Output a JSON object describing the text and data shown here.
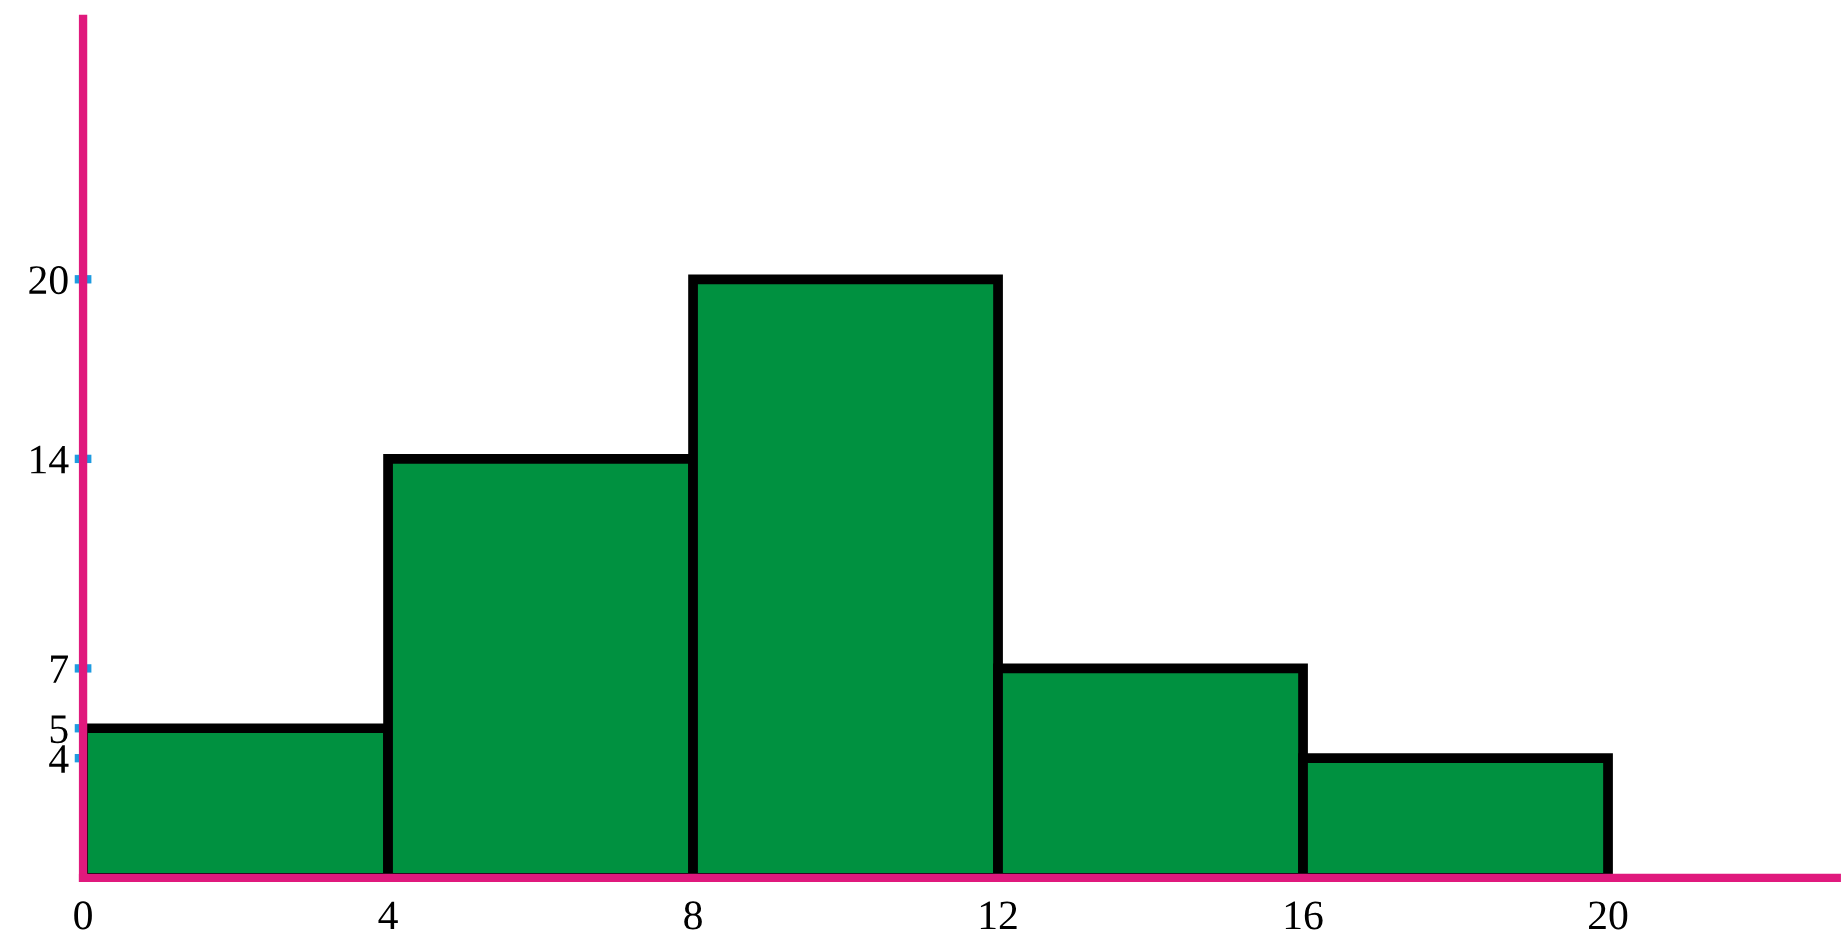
{
  "chart_data": {
    "type": "histogram",
    "bins": [
      0,
      4,
      8,
      12,
      16,
      20
    ],
    "values": [
      5,
      14,
      20,
      7,
      4
    ],
    "color": "#009140",
    "xlim": [
      0,
      23
    ],
    "ylim": [
      0,
      28.7
    ],
    "xticks": [
      0,
      4,
      8,
      12,
      16,
      20
    ],
    "yticks": [
      4,
      5,
      7,
      14,
      20
    ],
    "grid": false
  }
}
